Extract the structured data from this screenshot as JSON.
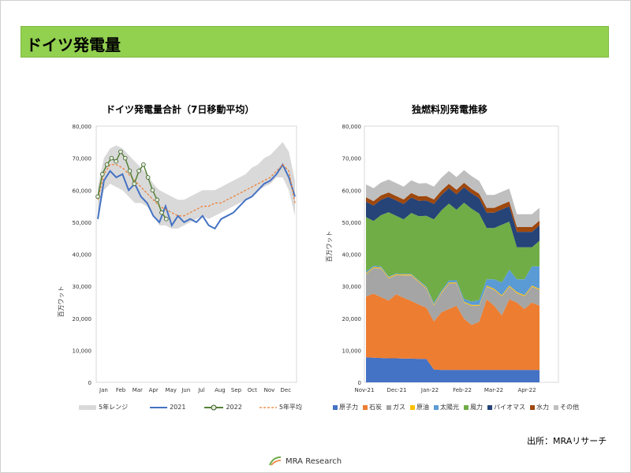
{
  "page": {
    "title": "ドイツ発電量",
    "source": "出所：MRAリサーチ",
    "logo_text": "MRA Research",
    "watermark": "MRA Research"
  },
  "colors": {
    "title_bar": "#92d050",
    "range": "#d9d9d9",
    "y2021": "#4472c4",
    "y2022_line": "#548235",
    "y2022_marker": "#e2efda",
    "avg": "#ed7d31"
  },
  "chart_data": [
    {
      "type": "line",
      "title": "ドイツ発電量合計（7日移動平均）",
      "ylabel": "百万ワット",
      "ylim": [
        0,
        80000
      ],
      "yticks": [
        "0",
        "10,000",
        "20,000",
        "30,000",
        "40,000",
        "50,000",
        "60,000",
        "70,000",
        "80,000"
      ],
      "x_labels": [
        "Jan",
        "Feb",
        "Mar",
        "Apr",
        "May",
        "Jun",
        "Jul",
        "Aug",
        "Sep",
        "Oct",
        "Nov",
        "Dec"
      ],
      "legend": [
        "5年レンジ",
        "2021",
        "2022",
        "5年平均"
      ],
      "legend_position": "bottom",
      "range_low": [
        52000,
        60000,
        62000,
        61000,
        60000,
        58000,
        56000,
        56000,
        55000,
        52000,
        49000,
        49000,
        48000,
        48000,
        49000,
        50000,
        51000,
        52000,
        51000,
        52000,
        53000,
        54000,
        55000,
        56000,
        57000,
        58000,
        60000,
        61000,
        62000,
        64000,
        64000,
        60000,
        52000
      ],
      "range_high": [
        61000,
        70000,
        73000,
        74000,
        73000,
        71000,
        69000,
        67000,
        65000,
        62000,
        60000,
        59000,
        58000,
        57000,
        57000,
        58000,
        59000,
        60000,
        60000,
        60000,
        61000,
        62000,
        63000,
        64000,
        65000,
        67000,
        68000,
        70000,
        71000,
        73000,
        75000,
        72000,
        63000
      ],
      "series": [
        {
          "name": "2021",
          "values": [
            51000,
            63000,
            66000,
            64000,
            65000,
            60000,
            62000,
            58000,
            56000,
            52000,
            50000,
            55000,
            49000,
            52000,
            50000,
            51000,
            50000,
            52000,
            49000,
            48000,
            51000,
            52000,
            53000,
            55000,
            57000,
            58000,
            60000,
            62000,
            63000,
            65000,
            68000,
            64000,
            58000
          ]
        },
        {
          "name": "2022",
          "values": [
            58000,
            65000,
            68000,
            70000,
            69000,
            72000,
            70000,
            66000,
            62000,
            66000,
            68000,
            64000,
            60000,
            57000,
            53000,
            51000
          ]
        },
        {
          "name": "5年平均",
          "values": [
            57000,
            65000,
            68000,
            68000,
            67000,
            65000,
            63000,
            61000,
            59000,
            57000,
            55000,
            54000,
            53000,
            52000,
            52000,
            53000,
            54000,
            55000,
            55000,
            56000,
            56000,
            57000,
            58000,
            59000,
            60000,
            61000,
            62000,
            63000,
            64000,
            66000,
            68000,
            66000,
            56000
          ]
        }
      ]
    },
    {
      "type": "area",
      "title": "独燃料別発電推移",
      "ylabel": "百万ワット",
      "ylim": [
        0,
        80000
      ],
      "yticks": [
        "0",
        "10,000",
        "20,000",
        "30,000",
        "40,000",
        "50,000",
        "60,000",
        "70,000",
        "80,000"
      ],
      "x_labels": [
        "Nov-21",
        "Dec-21",
        "Jan-22",
        "Feb-22",
        "Mar-22",
        "Apr-22"
      ],
      "legend_position": "bottom",
      "series": [
        {
          "name": "原子力",
          "color": "#4472c4",
          "values": [
            7800,
            7700,
            7600,
            7500,
            7500,
            7400,
            7400,
            7300,
            7300,
            4000,
            3900,
            3900,
            3900,
            3900,
            3900,
            3900,
            3900,
            3900,
            3900,
            3900,
            3900,
            3900,
            3900,
            3900
          ]
        },
        {
          "name": "石炭",
          "color": "#ed7d31",
          "values": [
            19000,
            20000,
            19000,
            18000,
            20000,
            19000,
            18000,
            17000,
            16000,
            15000,
            18000,
            19000,
            20000,
            16000,
            14000,
            15000,
            22000,
            20000,
            17000,
            22000,
            21000,
            19000,
            21000,
            20000
          ]
        },
        {
          "name": "ガス",
          "color": "#a5a5a5",
          "values": [
            7000,
            8000,
            9000,
            7000,
            6000,
            7000,
            8000,
            7000,
            6000,
            5000,
            6000,
            8000,
            7000,
            5000,
            6000,
            5000,
            4000,
            5000,
            6000,
            4000,
            3000,
            4000,
            5000,
            5000
          ]
        },
        {
          "name": "原油",
          "color": "#ffc000",
          "values": [
            300,
            300,
            300,
            300,
            300,
            300,
            300,
            300,
            300,
            300,
            300,
            300,
            300,
            300,
            300,
            300,
            300,
            300,
            300,
            300,
            300,
            300,
            300,
            300
          ]
        },
        {
          "name": "太陽光",
          "color": "#5b9bd5",
          "values": [
            500,
            400,
            300,
            300,
            200,
            200,
            200,
            300,
            400,
            600,
            500,
            600,
            700,
            900,
            1000,
            1500,
            2000,
            3000,
            4000,
            5000,
            4000,
            5000,
            6000,
            7000
          ]
        },
        {
          "name": "風力",
          "color": "#70ad47",
          "values": [
            17000,
            14000,
            16000,
            20000,
            18000,
            17000,
            19000,
            20000,
            22000,
            26000,
            25000,
            24000,
            22000,
            30000,
            29000,
            27000,
            16000,
            16000,
            18000,
            15000,
            10000,
            10000,
            6000,
            8000
          ]
        },
        {
          "name": "バイオマス",
          "color": "#264478",
          "values": [
            4800,
            4800,
            4800,
            4800,
            4800,
            4800,
            4800,
            4800,
            4800,
            4800,
            4800,
            4800,
            4800,
            4800,
            4800,
            4800,
            4800,
            4800,
            4800,
            4800,
            4800,
            4800,
            4800,
            4800
          ]
        },
        {
          "name": "水力",
          "color": "#9e480e",
          "values": [
            1400,
            1400,
            1400,
            1400,
            1400,
            1400,
            1400,
            1400,
            1400,
            1400,
            1400,
            1400,
            1400,
            1400,
            1400,
            1400,
            1500,
            1500,
            1500,
            1500,
            1500,
            1500,
            1500,
            1500
          ]
        },
        {
          "name": "その他",
          "color": "#bfbfbf",
          "values": [
            4000,
            4000,
            4000,
            4000,
            4000,
            4000,
            4000,
            4000,
            4000,
            4000,
            4000,
            4000,
            4000,
            4000,
            4000,
            4000,
            4000,
            4000,
            4000,
            4000,
            4000,
            4000,
            4000,
            4000
          ]
        }
      ]
    }
  ]
}
